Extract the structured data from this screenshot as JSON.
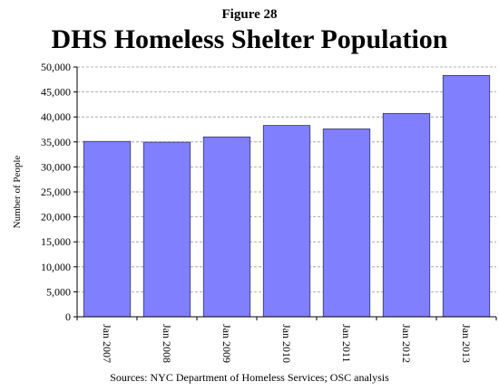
{
  "figure_label": "Figure 28",
  "source_note": "Sources: NYC Department of Homeless Services; OSC analysis",
  "colors": {
    "bar": "#8080ff",
    "bar_stroke": "#333366",
    "grid": "#999999"
  },
  "chart_data": {
    "type": "bar",
    "title": "DHS Homeless Shelter Population",
    "xlabel": "",
    "ylabel": "Number of People",
    "ylim": [
      0,
      50000
    ],
    "ytick_step": 5000,
    "grid": true,
    "categories": [
      "Jan 2007",
      "Jan 2008",
      "Jan 2009",
      "Jan 2010",
      "Jan 2011",
      "Jan 2012",
      "Jan 2013"
    ],
    "values": [
      35100,
      34950,
      36000,
      38300,
      37600,
      40700,
      48300
    ]
  }
}
